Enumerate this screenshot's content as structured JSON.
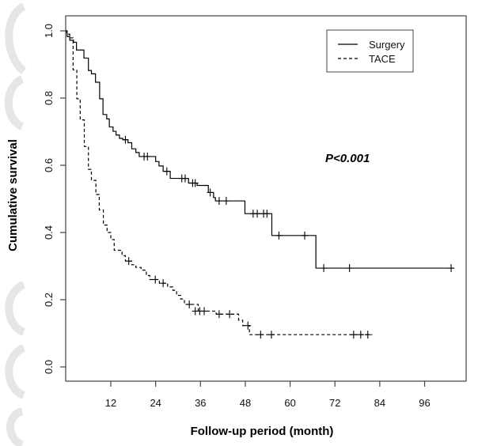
{
  "chart_data": {
    "type": "line",
    "subtype": "kaplan-meier step",
    "title": "",
    "xlabel": "Follow-up period (month)",
    "ylabel": "Cumulative survival",
    "xlim": [
      0,
      106
    ],
    "ylim": [
      0,
      1.0
    ],
    "xticks": [
      12,
      24,
      36,
      48,
      60,
      72,
      84,
      96
    ],
    "xtick_labels": [
      "12",
      "24",
      "36",
      "48",
      "60",
      "72",
      "84",
      "96"
    ],
    "yticks": [
      0.0,
      0.2,
      0.4,
      0.6,
      0.8,
      1.0
    ],
    "ytick_labels": [
      "0.0",
      "0.2",
      "0.4",
      "0.6",
      "0.8",
      "1.0"
    ],
    "grid": false,
    "legend": {
      "position": "top-right",
      "entries": [
        "Surgery",
        "TACE"
      ]
    },
    "annotations": [
      {
        "text": "P<0.001",
        "x": 70,
        "y": 0.61
      }
    ],
    "series": [
      {
        "name": "Surgery",
        "line_style": "solid",
        "color": "#000000",
        "end_x": 104,
        "steps": [
          [
            0,
            1.0
          ],
          [
            0.3,
            0.983
          ],
          [
            1.0,
            0.972
          ],
          [
            2.0,
            0.966
          ],
          [
            2.8,
            0.943
          ],
          [
            4.8,
            0.919
          ],
          [
            6.0,
            0.882
          ],
          [
            6.8,
            0.872
          ],
          [
            7.9,
            0.847
          ],
          [
            9.0,
            0.798
          ],
          [
            9.9,
            0.751
          ],
          [
            10.9,
            0.738
          ],
          [
            11.6,
            0.714
          ],
          [
            12.6,
            0.701
          ],
          [
            13.4,
            0.69
          ],
          [
            14.3,
            0.68
          ],
          [
            15.2,
            0.676
          ],
          [
            16.6,
            0.667
          ],
          [
            17.6,
            0.649
          ],
          [
            18.7,
            0.638
          ],
          [
            19.6,
            0.626
          ],
          [
            24.0,
            0.611
          ],
          [
            24.9,
            0.598
          ],
          [
            26.0,
            0.582
          ],
          [
            27.9,
            0.561
          ],
          [
            32.8,
            0.547
          ],
          [
            35.1,
            0.54
          ],
          [
            38.1,
            0.519
          ],
          [
            39.5,
            0.504
          ],
          [
            40.0,
            0.494
          ],
          [
            47.9,
            0.456
          ],
          [
            55.1,
            0.391
          ],
          [
            66.9,
            0.294
          ]
        ],
        "censored": [
          [
            15.9,
            0.676
          ],
          [
            20.9,
            0.626
          ],
          [
            21.8,
            0.626
          ],
          [
            27.0,
            0.582
          ],
          [
            31.0,
            0.561
          ],
          [
            31.9,
            0.561
          ],
          [
            33.9,
            0.547
          ],
          [
            34.6,
            0.547
          ],
          [
            38.6,
            0.519
          ],
          [
            41.0,
            0.494
          ],
          [
            42.9,
            0.494
          ],
          [
            50.1,
            0.456
          ],
          [
            51.2,
            0.456
          ],
          [
            52.9,
            0.456
          ],
          [
            53.8,
            0.456
          ],
          [
            57.0,
            0.391
          ],
          [
            63.9,
            0.391
          ],
          [
            69.0,
            0.294
          ],
          [
            75.9,
            0.294
          ],
          [
            103.1,
            0.294
          ]
        ]
      },
      {
        "name": "TACE",
        "line_style": "dashed",
        "color": "#000000",
        "end_x": 82,
        "steps": [
          [
            0,
            1.0
          ],
          [
            0.2,
            0.99
          ],
          [
            1.0,
            0.979
          ],
          [
            1.9,
            0.884
          ],
          [
            2.9,
            0.798
          ],
          [
            3.8,
            0.735
          ],
          [
            4.9,
            0.656
          ],
          [
            6.0,
            0.588
          ],
          [
            6.8,
            0.555
          ],
          [
            8.0,
            0.513
          ],
          [
            8.9,
            0.467
          ],
          [
            10.0,
            0.422
          ],
          [
            11.0,
            0.4
          ],
          [
            12.0,
            0.379
          ],
          [
            12.9,
            0.347
          ],
          [
            15.0,
            0.331
          ],
          [
            15.9,
            0.315
          ],
          [
            17.6,
            0.304
          ],
          [
            18.7,
            0.296
          ],
          [
            20.1,
            0.288
          ],
          [
            21.5,
            0.272
          ],
          [
            22.4,
            0.26
          ],
          [
            25.0,
            0.249
          ],
          [
            27.2,
            0.238
          ],
          [
            28.6,
            0.228
          ],
          [
            29.6,
            0.213
          ],
          [
            30.7,
            0.202
          ],
          [
            31.7,
            0.186
          ],
          [
            35.4,
            0.166
          ],
          [
            40.2,
            0.157
          ],
          [
            46.2,
            0.139
          ],
          [
            47.3,
            0.123
          ],
          [
            49.1,
            0.096
          ]
        ],
        "censored": [
          [
            16.8,
            0.315
          ],
          [
            23.9,
            0.26
          ],
          [
            26.0,
            0.249
          ],
          [
            33.0,
            0.186
          ],
          [
            34.6,
            0.166
          ],
          [
            35.8,
            0.166
          ],
          [
            37.0,
            0.166
          ],
          [
            41.0,
            0.157
          ],
          [
            43.8,
            0.157
          ],
          [
            48.7,
            0.123
          ],
          [
            52.1,
            0.096
          ],
          [
            55.0,
            0.096
          ],
          [
            77.0,
            0.096
          ],
          [
            78.9,
            0.096
          ],
          [
            80.8,
            0.096
          ]
        ]
      }
    ]
  }
}
